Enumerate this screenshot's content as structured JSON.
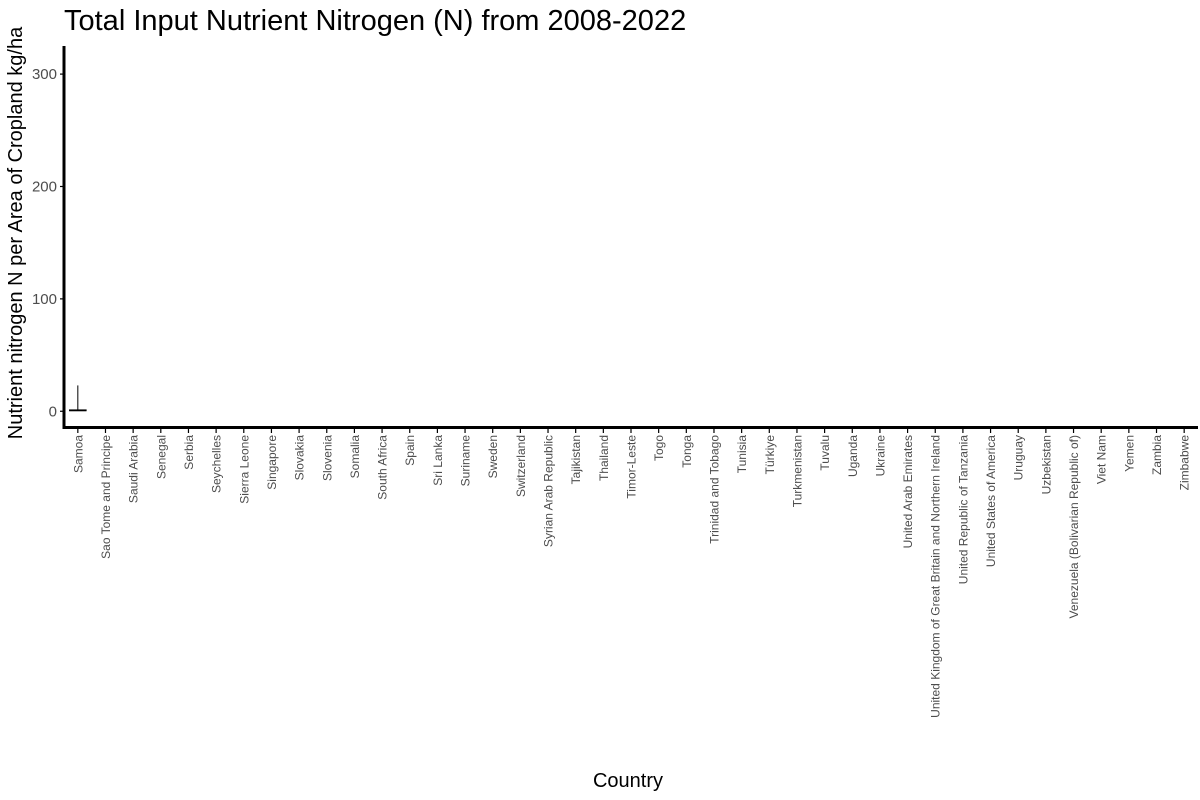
{
  "chart_data": {
    "type": "box",
    "title": "Total Input Nutrient Nitrogen (N) from 2008-2022",
    "xlabel": "Country",
    "ylabel": "Nutrient nitrogen N per Area of Cropland kg/ha",
    "ylim": [
      -14,
      325
    ],
    "yticks": [
      0,
      100,
      200,
      300
    ],
    "grid": false,
    "legend": "none",
    "colors": {
      "axis": "#000000",
      "tick_label": "#4d4d4d",
      "box": "#000000"
    },
    "categories": [
      "Samoa",
      "Sao Tome and Principe",
      "Saudi Arabia",
      "Senegal",
      "Serbia",
      "Seychelles",
      "Sierra Leone",
      "Singapore",
      "Slovakia",
      "Slovenia",
      "Somalia",
      "South Africa",
      "Spain",
      "Sri Lanka",
      "Suriname",
      "Sweden",
      "Switzerland",
      "Syrian Arab Republic",
      "Tajikistan",
      "Thailand",
      "Timor-Leste",
      "Togo",
      "Tonga",
      "Trinidad and Tobago",
      "Tunisia",
      "Türkiye",
      "Turkmenistan",
      "Tuvalu",
      "Uganda",
      "Ukraine",
      "United Arab Emirates",
      "United Kingdom of Great Britain and Northern Ireland",
      "United Republic of Tanzania",
      "United States of America",
      "Uruguay",
      "Uzbekistan",
      "Venezuela (Bolivarian Republic of)",
      "Viet Nam",
      "Yemen",
      "Zambia",
      "Zimbabwe"
    ],
    "boxes": [
      {
        "category": "Samoa",
        "min": 0.3,
        "q1": 0.6,
        "median": 0.8,
        "q3": 1.2,
        "max": 23
      }
    ]
  }
}
